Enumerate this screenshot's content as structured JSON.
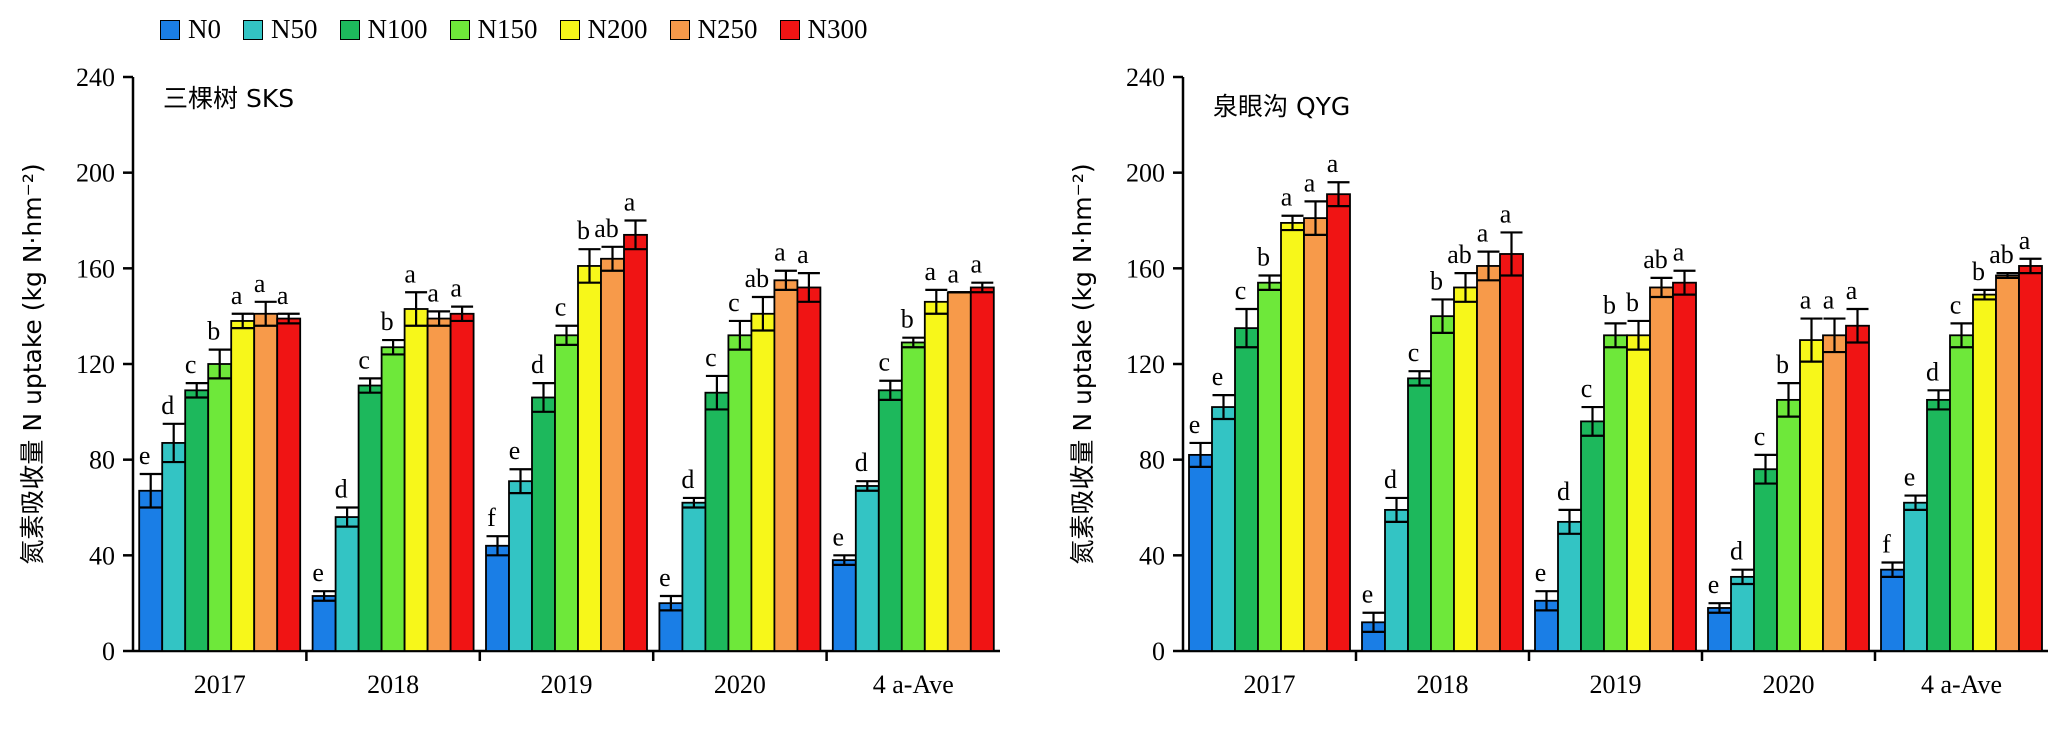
{
  "legend": [
    {
      "name": "N0",
      "color": "#1a7ee6"
    },
    {
      "name": "N50",
      "color": "#33c4c4"
    },
    {
      "name": "N100",
      "color": "#1db85c"
    },
    {
      "name": "N150",
      "color": "#6ee83a"
    },
    {
      "name": "N200",
      "color": "#f7f71a"
    },
    {
      "name": "N250",
      "color": "#f79a4a"
    },
    {
      "name": "N300",
      "color": "#f01414"
    }
  ],
  "chart_data": [
    {
      "type": "bar",
      "title": "三棵树 SKS",
      "ylabel": "氮素吸收量 N uptake (kg N·hm⁻²)",
      "xlabel": "",
      "ylim": [
        0,
        240
      ],
      "yticks": [
        0,
        40,
        80,
        120,
        160,
        200,
        240
      ],
      "categories": [
        "2017",
        "2018",
        "2019",
        "2020",
        "4 a-Ave"
      ],
      "series": [
        {
          "name": "N0",
          "values": [
            67,
            23,
            44,
            20,
            38
          ],
          "errors": [
            7,
            2,
            4,
            3,
            2
          ],
          "labels": [
            "e",
            "e",
            "f",
            "e",
            "e"
          ]
        },
        {
          "name": "N50",
          "values": [
            87,
            56,
            71,
            62,
            69
          ],
          "errors": [
            8,
            4,
            5,
            2,
            2
          ],
          "labels": [
            "d",
            "d",
            "e",
            "d",
            "d"
          ]
        },
        {
          "name": "N100",
          "values": [
            109,
            111,
            106,
            108,
            109
          ],
          "errors": [
            3,
            3,
            6,
            7,
            4
          ],
          "labels": [
            "c",
            "c",
            "d",
            "c",
            "c"
          ]
        },
        {
          "name": "N150",
          "values": [
            120,
            127,
            132,
            132,
            129
          ],
          "errors": [
            6,
            3,
            4,
            6,
            2
          ],
          "labels": [
            "b",
            "b",
            "c",
            "c",
            "b"
          ]
        },
        {
          "name": "N200",
          "values": [
            138,
            143,
            161,
            141,
            146
          ],
          "errors": [
            3,
            7,
            7,
            7,
            5
          ],
          "labels": [
            "a",
            "a",
            "b",
            "ab",
            "a"
          ]
        },
        {
          "name": "N250",
          "values": [
            141,
            139,
            164,
            155,
            150
          ],
          "errors": [
            5,
            3,
            5,
            4,
            0
          ],
          "labels": [
            "a",
            "a",
            "ab",
            "a",
            "a"
          ]
        },
        {
          "name": "N300",
          "values": [
            139,
            141,
            174,
            152,
            152
          ],
          "errors": [
            2,
            3,
            6,
            6,
            2
          ],
          "labels": [
            "a",
            "a",
            "a",
            "a",
            "a"
          ]
        }
      ]
    },
    {
      "type": "bar",
      "title": "泉眼沟 QYG",
      "ylabel": "氮素吸收量 N uptake (kg N·hm⁻²)",
      "xlabel": "",
      "ylim": [
        0,
        240
      ],
      "yticks": [
        0,
        40,
        80,
        120,
        160,
        200,
        240
      ],
      "categories": [
        "2017",
        "2018",
        "2019",
        "2020",
        "4 a-Ave"
      ],
      "series": [
        {
          "name": "N0",
          "values": [
            82,
            12,
            21,
            18,
            34
          ],
          "errors": [
            5,
            4,
            4,
            2,
            3
          ],
          "labels": [
            "e",
            "e",
            "e",
            "e",
            "f"
          ]
        },
        {
          "name": "N50",
          "values": [
            102,
            59,
            54,
            31,
            62
          ],
          "errors": [
            5,
            5,
            5,
            3,
            3
          ],
          "labels": [
            "e",
            "d",
            "d",
            "d",
            "e"
          ]
        },
        {
          "name": "N100",
          "values": [
            135,
            114,
            96,
            76,
            105
          ],
          "errors": [
            8,
            3,
            6,
            6,
            4
          ],
          "labels": [
            "c",
            "c",
            "c",
            "c",
            "d"
          ]
        },
        {
          "name": "N150",
          "values": [
            154,
            140,
            132,
            105,
            132
          ],
          "errors": [
            3,
            7,
            5,
            7,
            5
          ],
          "labels": [
            "b",
            "b",
            "b",
            "b",
            "c"
          ]
        },
        {
          "name": "N200",
          "values": [
            179,
            152,
            132,
            130,
            149
          ],
          "errors": [
            3,
            6,
            6,
            9,
            2
          ],
          "labels": [
            "a",
            "ab",
            "b",
            "a",
            "b"
          ]
        },
        {
          "name": "N250",
          "values": [
            181,
            161,
            152,
            132,
            157
          ],
          "errors": [
            7,
            6,
            4,
            7,
            1
          ],
          "labels": [
            "a",
            "a",
            "ab",
            "a",
            "ab"
          ]
        },
        {
          "name": "N300",
          "values": [
            191,
            166,
            154,
            136,
            161
          ],
          "errors": [
            5,
            9,
            5,
            7,
            3
          ],
          "labels": [
            "a",
            "a",
            "a",
            "a",
            "a"
          ]
        }
      ]
    }
  ]
}
